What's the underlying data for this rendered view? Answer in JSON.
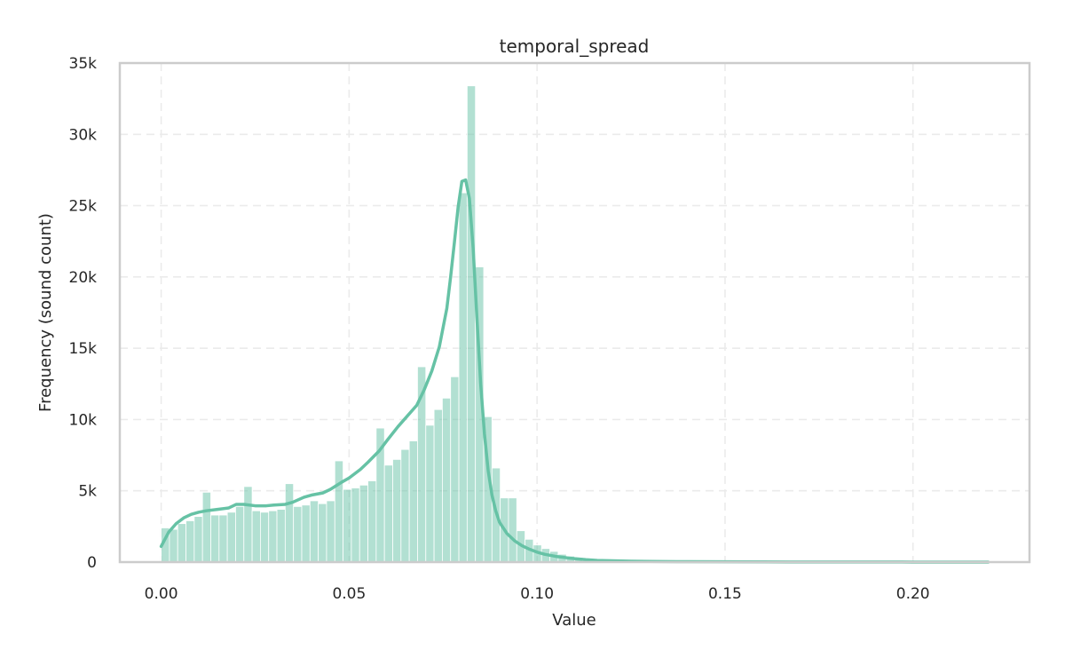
{
  "chart_data": {
    "type": "bar",
    "title": "temporal_spread",
    "xlabel": "Value",
    "ylabel": "Frequency (sound count)",
    "xlim": [
      -0.011,
      0.231
    ],
    "ylim": [
      0,
      35000
    ],
    "xticks": [
      0.0,
      0.05,
      0.1,
      0.15,
      0.2
    ],
    "xtick_labels": [
      "0.00",
      "0.05",
      "0.10",
      "0.15",
      "0.20"
    ],
    "yticks": [
      0,
      5000,
      10000,
      15000,
      20000,
      25000,
      30000,
      35000
    ],
    "ytick_labels": [
      "0",
      "5k",
      "10k",
      "15k",
      "20k",
      "25k",
      "30k",
      "35k"
    ],
    "grid": true,
    "bin_start": 0.0,
    "bin_width": 0.0022,
    "values": [
      2400,
      2300,
      2700,
      2900,
      3200,
      4900,
      3300,
      3300,
      3500,
      3900,
      5300,
      3600,
      3500,
      3600,
      3700,
      5500,
      3900,
      4000,
      4300,
      4100,
      4300,
      7100,
      5100,
      5200,
      5400,
      5700,
      9400,
      6800,
      7200,
      7900,
      8500,
      13700,
      9600,
      10700,
      11500,
      13000,
      25900,
      33400,
      20700,
      10200,
      6600,
      4500,
      4500,
      2200,
      1600,
      1200,
      950,
      750,
      550,
      420,
      330,
      250,
      200,
      160,
      130,
      110,
      90,
      75,
      65,
      55,
      50,
      45,
      40,
      36,
      32,
      29,
      26,
      24,
      22,
      20,
      18,
      17,
      16,
      15,
      14,
      13,
      12,
      11,
      10,
      10,
      9,
      9,
      8,
      8,
      7,
      7,
      7,
      6,
      6,
      6,
      5,
      5,
      5,
      5,
      4,
      4,
      4,
      4,
      3,
      3
    ],
    "kde": {
      "x": [
        0.0,
        0.002,
        0.004,
        0.006,
        0.008,
        0.01,
        0.012,
        0.015,
        0.018,
        0.02,
        0.022,
        0.025,
        0.028,
        0.03,
        0.033,
        0.035,
        0.038,
        0.04,
        0.043,
        0.045,
        0.048,
        0.05,
        0.053,
        0.055,
        0.058,
        0.06,
        0.063,
        0.065,
        0.068,
        0.07,
        0.072,
        0.074,
        0.076,
        0.077,
        0.078,
        0.079,
        0.08,
        0.081,
        0.082,
        0.083,
        0.084,
        0.085,
        0.086,
        0.087,
        0.088,
        0.089,
        0.09,
        0.092,
        0.094,
        0.096,
        0.098,
        0.1,
        0.102,
        0.105,
        0.108,
        0.11,
        0.113,
        0.116,
        0.12,
        0.125,
        0.13,
        0.14,
        0.15,
        0.16,
        0.17,
        0.18,
        0.19,
        0.2,
        0.21,
        0.22
      ],
      "y": [
        1100,
        2100,
        2700,
        3100,
        3350,
        3500,
        3600,
        3700,
        3800,
        4050,
        4050,
        3950,
        3950,
        4000,
        4050,
        4200,
        4550,
        4700,
        4850,
        5100,
        5600,
        5900,
        6500,
        7000,
        7800,
        8500,
        9500,
        10100,
        11000,
        12100,
        13400,
        15100,
        17800,
        20000,
        22400,
        24900,
        26700,
        26800,
        25500,
        22000,
        17100,
        12500,
        9000,
        6400,
        4700,
        3600,
        2800,
        2000,
        1500,
        1150,
        900,
        700,
        550,
        400,
        300,
        240,
        170,
        120,
        90,
        60,
        45,
        30,
        22,
        15,
        10,
        7,
        5,
        4,
        3,
        2
      ]
    },
    "colors": {
      "bars": "#66c2a5",
      "kde": "#66c2a5",
      "grid": "#ebebeb",
      "frame": "#cccccc",
      "text": "#262626"
    }
  }
}
